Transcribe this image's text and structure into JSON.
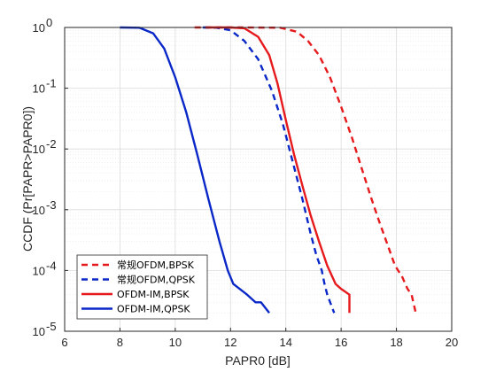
{
  "chart_data": {
    "type": "line",
    "xlabel": "PAPR0 [dB]",
    "ylabel": "CCDF (Pr[PAPR>PAPR0])",
    "xlim": [
      6,
      20
    ],
    "ylim": [
      1e-05,
      1
    ],
    "yscale": "log",
    "grid": true,
    "legend_position": "bottom-left",
    "x_ticks": [
      "6",
      "8",
      "10",
      "12",
      "14",
      "16",
      "18",
      "20"
    ],
    "y_ticks": [
      {
        "base": "10",
        "exp": "0"
      },
      {
        "base": "10",
        "exp": "-1"
      },
      {
        "base": "10",
        "exp": "-2"
      },
      {
        "base": "10",
        "exp": "-3"
      },
      {
        "base": "10",
        "exp": "-4"
      },
      {
        "base": "10",
        "exp": "-5"
      }
    ],
    "series": [
      {
        "name": "常规OFDM,BPSK",
        "color": "#e6191c",
        "style": "dashed",
        "points": [
          [
            10.7,
            1.0
          ],
          [
            12.5,
            1.0
          ],
          [
            13.8,
            0.99
          ],
          [
            14.4,
            0.85
          ],
          [
            14.8,
            0.6
          ],
          [
            15.2,
            0.35
          ],
          [
            15.6,
            0.15
          ],
          [
            16.0,
            0.05
          ],
          [
            16.4,
            0.015
          ],
          [
            16.8,
            0.004
          ],
          [
            17.1,
            0.0015
          ],
          [
            17.4,
            0.0006
          ],
          [
            17.7,
            0.00025
          ],
          [
            17.95,
            0.00012
          ],
          [
            18.2,
            8e-05
          ],
          [
            18.4,
            5e-05
          ],
          [
            18.55,
            4e-05
          ],
          [
            18.7,
            2e-05
          ]
        ]
      },
      {
        "name": "常规OFDM,QPSK",
        "color": "#0a28c8",
        "style": "dashed",
        "points": [
          [
            11.0,
            1.0
          ],
          [
            11.5,
            0.99
          ],
          [
            12.0,
            0.9
          ],
          [
            12.5,
            0.6
          ],
          [
            13.0,
            0.3
          ],
          [
            13.5,
            0.09
          ],
          [
            13.9,
            0.025
          ],
          [
            14.3,
            0.005
          ],
          [
            14.6,
            0.0015
          ],
          [
            14.9,
            0.0004
          ],
          [
            15.1,
            0.00018
          ],
          [
            15.3,
            0.0001
          ],
          [
            15.4,
            6e-05
          ],
          [
            15.5,
            4e-05
          ],
          [
            15.75,
            2e-05
          ]
        ]
      },
      {
        "name": "OFDM-IM,BPSK",
        "color": "#e6191c",
        "style": "solid",
        "points": [
          [
            11.1,
            1.0
          ],
          [
            12.0,
            1.0
          ],
          [
            12.5,
            0.97
          ],
          [
            13.0,
            0.7
          ],
          [
            13.4,
            0.35
          ],
          [
            13.7,
            0.12
          ],
          [
            14.0,
            0.03
          ],
          [
            14.3,
            0.008
          ],
          [
            14.6,
            0.0025
          ],
          [
            14.9,
            0.0008
          ],
          [
            15.2,
            0.0003
          ],
          [
            15.5,
            0.00012
          ],
          [
            15.8,
            6e-05
          ],
          [
            16.0,
            5e-05
          ],
          [
            16.3,
            4e-05
          ],
          [
            16.3,
            2e-05
          ]
        ]
      },
      {
        "name": "OFDM-IM,QPSK",
        "color": "#0a28c8",
        "style": "solid",
        "points": [
          [
            8.0,
            1.0
          ],
          [
            8.7,
            0.99
          ],
          [
            9.2,
            0.8
          ],
          [
            9.6,
            0.45
          ],
          [
            10.0,
            0.15
          ],
          [
            10.4,
            0.04
          ],
          [
            10.8,
            0.008
          ],
          [
            11.2,
            0.0015
          ],
          [
            11.6,
            0.0003
          ],
          [
            11.9,
            0.0001
          ],
          [
            12.1,
            6e-05
          ],
          [
            12.6,
            4e-05
          ],
          [
            12.9,
            3e-05
          ],
          [
            13.1,
            3e-05
          ],
          [
            13.4,
            2e-05
          ]
        ]
      }
    ]
  }
}
